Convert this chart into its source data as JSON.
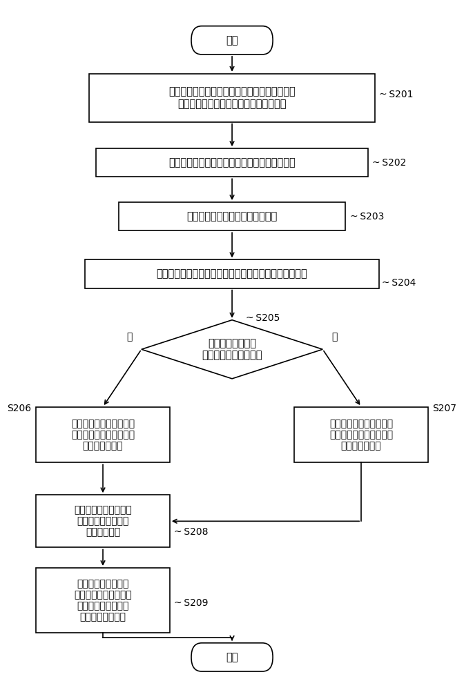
{
  "bg_color": "#ffffff",
  "line_color": "#000000",
  "text_color": "#000000",
  "font_size_main": 10.5,
  "font_size_small": 10.0,
  "font_size_label": 10.0,
  "start_text": "开始",
  "end_text": "结束",
  "s201_text": "将时间序列数据的多笔数据分配于多个数据组，\n以对各数据组中的多笔数据执行平均计算",
  "s202_text": "产生对应的各数据组之所有数据之平均计算数值",
  "s203_text": "缓存各平均计算数值以及记录数值",
  "s204_text": "将时间序列数据的新输入数据之数值与记录数值进行比较",
  "s205_text": "判断新输入数据之\n数值是否大于记录数值",
  "s206_text": "将新输入数据加入至所述\n数据组中其平均计算数值\n为最小的数据组",
  "s207_text": "将新输入数据加入至所述\n数据组中其平均计算数值\n为最大的数据组",
  "s208_text": "重新对被选择的数据组\n执行平均计算并产生\n平均计算数值",
  "s209_text": "选取所述数据组中的\n一个数据组，将被选取\n的数据组的平均计算\n数值更新记录数值",
  "no_text": "否",
  "yes_text": "是",
  "label_s201": "S201",
  "label_s202": "S202",
  "label_s203": "S203",
  "label_s204": "S204",
  "label_s205": "S205",
  "label_s206": "S206",
  "label_s207": "S207",
  "label_s208": "S208",
  "label_s209": "S209"
}
